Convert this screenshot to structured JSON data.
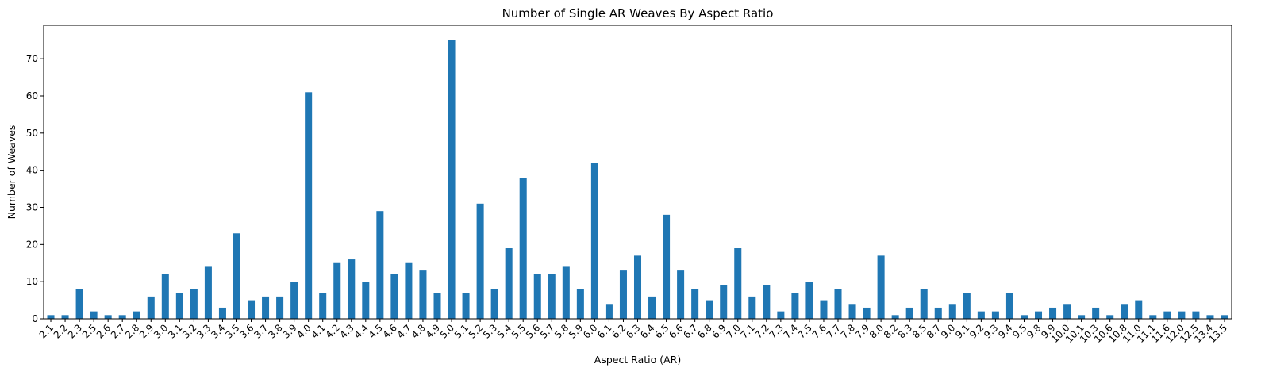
{
  "chart_data": {
    "type": "bar",
    "title": "Number of Single AR Weaves By Aspect Ratio",
    "xlabel": "Aspect Ratio (AR)",
    "ylabel": "Number of Weaves",
    "ylim": [
      0,
      79
    ],
    "yticks": [
      0,
      10,
      20,
      30,
      40,
      50,
      60,
      70
    ],
    "grid": false,
    "bar_color": "#1f77b4",
    "categories": [
      "2.1",
      "2.2",
      "2.3",
      "2.5",
      "2.6",
      "2.7",
      "2.8",
      "2.9",
      "3.0",
      "3.1",
      "3.2",
      "3.3",
      "3.4",
      "3.5",
      "3.6",
      "3.7",
      "3.8",
      "3.9",
      "4.0",
      "4.1",
      "4.2",
      "4.3",
      "4.4",
      "4.5",
      "4.6",
      "4.7",
      "4.8",
      "4.9",
      "5.0",
      "5.1",
      "5.2",
      "5.3",
      "5.4",
      "5.5",
      "5.6",
      "5.7",
      "5.8",
      "5.9",
      "6.0",
      "6.1",
      "6.2",
      "6.3",
      "6.4",
      "6.5",
      "6.6",
      "6.7",
      "6.8",
      "6.9",
      "7.0",
      "7.1",
      "7.2",
      "7.3",
      "7.4",
      "7.5",
      "7.6",
      "7.7",
      "7.8",
      "7.9",
      "8.0",
      "8.2",
      "8.3",
      "8.5",
      "8.7",
      "9.0",
      "9.1",
      "9.2",
      "9.3",
      "9.4",
      "9.5",
      "9.8",
      "9.9",
      "10.0",
      "10.1",
      "10.3",
      "10.6",
      "10.8",
      "11.0",
      "11.1",
      "11.6",
      "12.0",
      "12.5",
      "13.4",
      "13.5"
    ],
    "values": [
      1,
      1,
      8,
      2,
      1,
      1,
      2,
      6,
      12,
      7,
      8,
      14,
      3,
      23,
      5,
      6,
      6,
      10,
      61,
      7,
      15,
      16,
      10,
      29,
      12,
      15,
      13,
      7,
      75,
      7,
      31,
      8,
      19,
      38,
      12,
      12,
      14,
      8,
      42,
      4,
      13,
      17,
      6,
      28,
      13,
      8,
      5,
      9,
      19,
      6,
      9,
      2,
      7,
      10,
      5,
      8,
      4,
      3,
      17,
      1,
      3,
      8,
      3,
      4,
      7,
      2,
      2,
      7,
      1,
      2,
      3,
      4,
      1,
      3,
      1,
      4,
      5,
      1,
      2,
      2,
      2,
      1,
      1
    ]
  }
}
